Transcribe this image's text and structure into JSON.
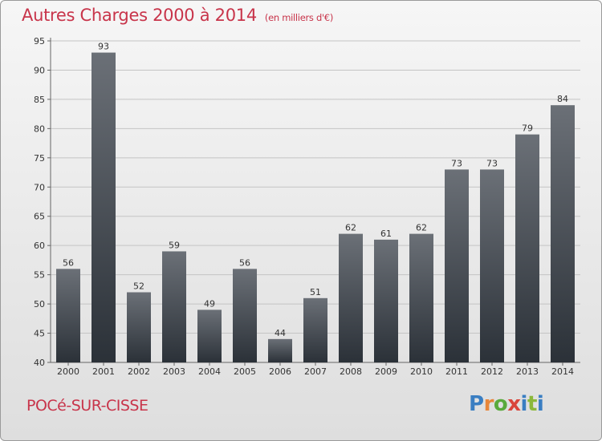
{
  "header": {
    "title": "Autres Charges 2000 à 2014",
    "subtitle": "(en milliers d'€)"
  },
  "footer": {
    "town": "POCé-SUR-CISSE",
    "logo": [
      "P",
      "r",
      "o",
      "x",
      "i",
      "t",
      "i"
    ]
  },
  "colors": {
    "title": "#c8344a",
    "bar_top": "#6b7077",
    "bar_bottom": "#2b3138"
  },
  "chart_data": {
    "type": "bar",
    "title": "Autres Charges 2000 à 2014",
    "subtitle": "(en milliers d'€)",
    "categories": [
      "2000",
      "2001",
      "2002",
      "2003",
      "2004",
      "2005",
      "2006",
      "2007",
      "2008",
      "2009",
      "2010",
      "2011",
      "2012",
      "2013",
      "2014"
    ],
    "values": [
      56,
      93,
      52,
      59,
      49,
      56,
      44,
      51,
      62,
      61,
      62,
      73,
      73,
      79,
      84
    ],
    "ylim": [
      40,
      95
    ],
    "yticks": [
      40,
      45,
      50,
      55,
      60,
      65,
      70,
      75,
      80,
      85,
      90,
      95
    ],
    "grid": true,
    "data_labels": true
  }
}
